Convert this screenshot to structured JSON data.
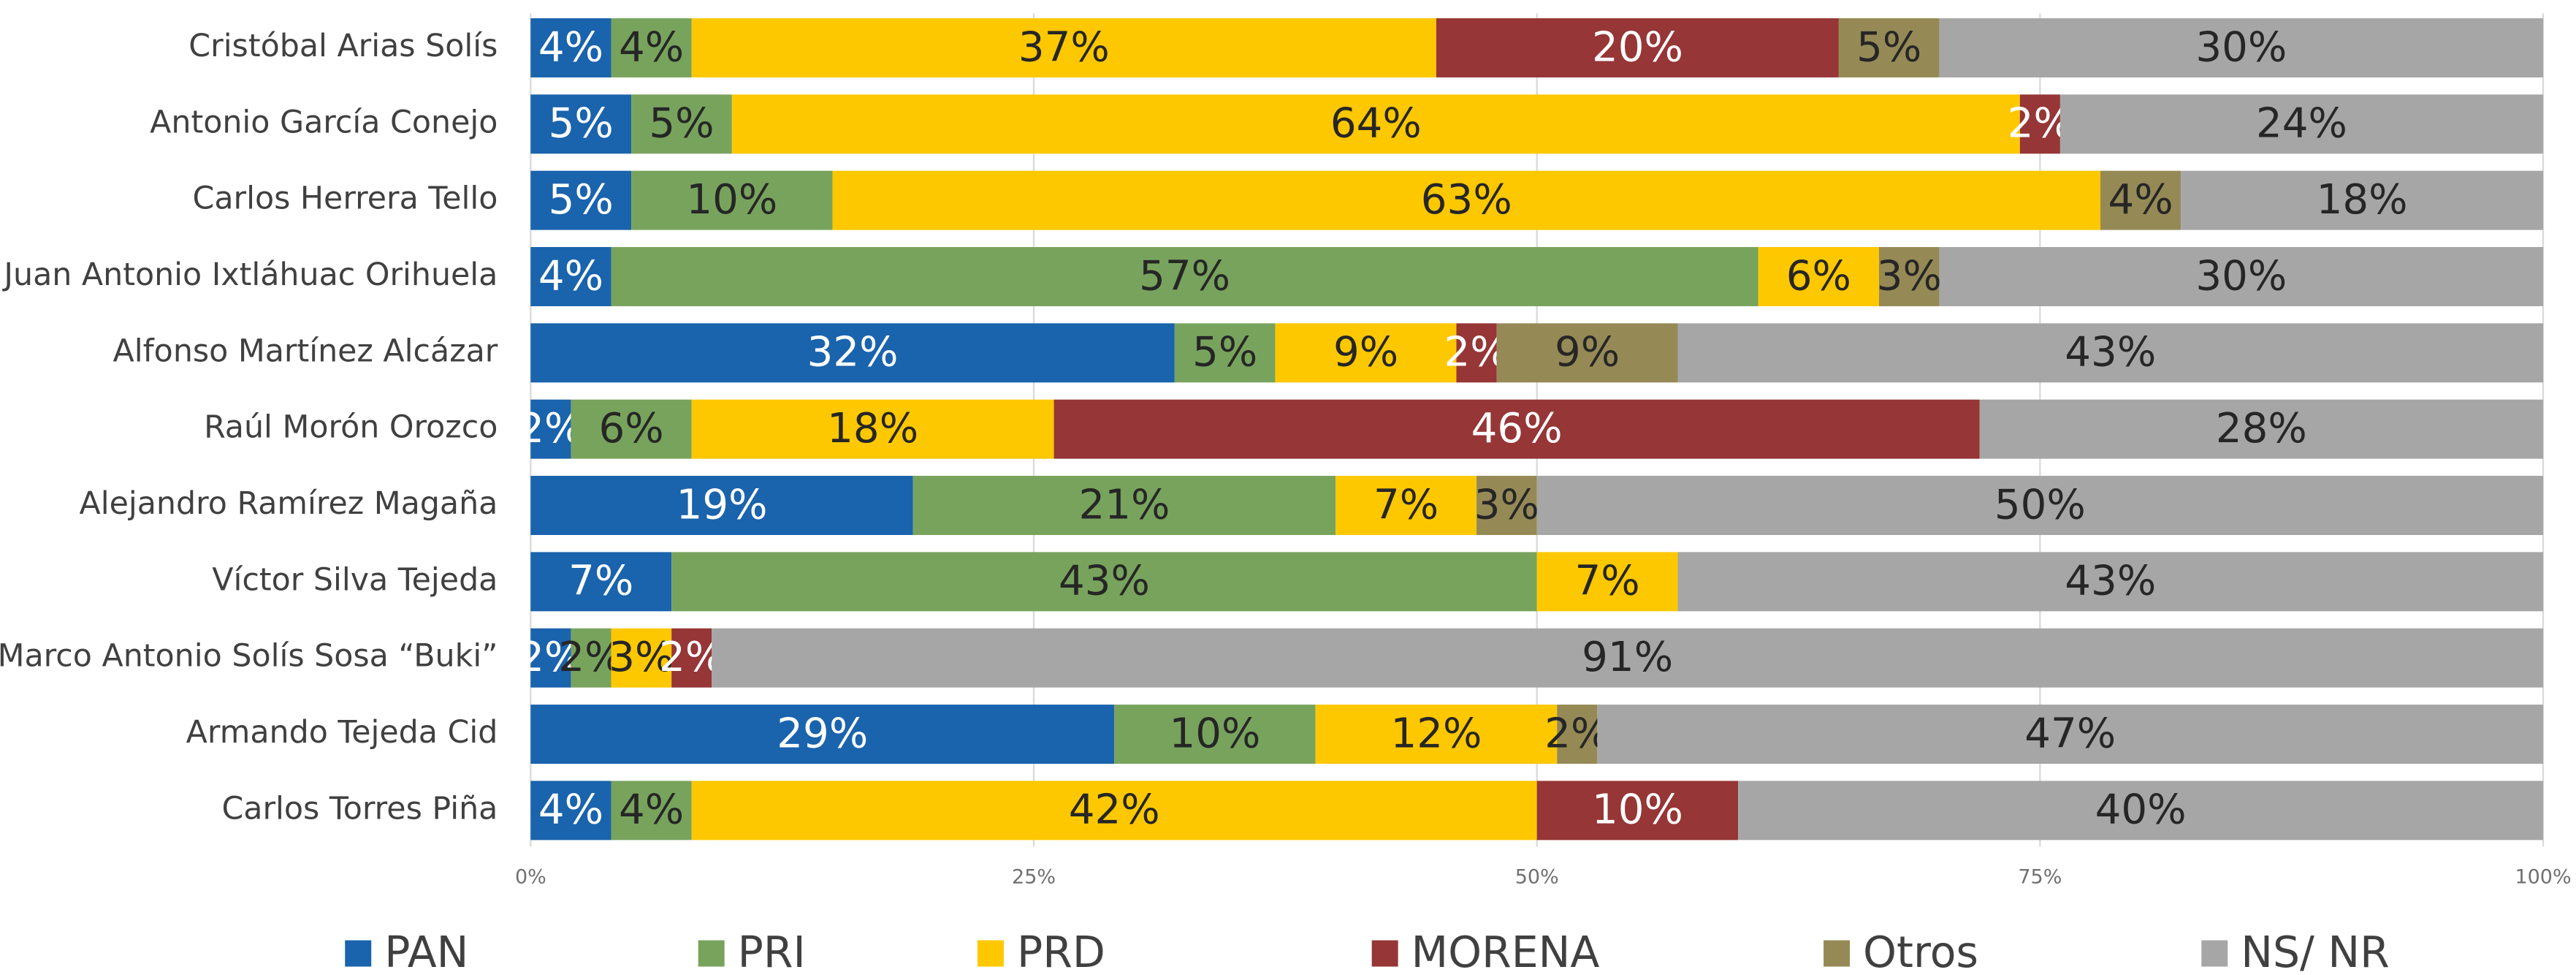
{
  "chart_data": {
    "type": "stacked_bar_horizontal",
    "categories": [
      "Cristóbal Arias Solís",
      "Antonio García Conejo",
      "Carlos Herrera Tello",
      "Juan Antonio Ixtláhuac Orihuela",
      "Alfonso Martínez Alcázar",
      "Raúl Morón Orozco",
      "Alejandro Ramírez Magaña",
      "Víctor Silva Tejeda",
      "Marco Antonio Solís Sosa “Buki”",
      "Armando Tejeda Cid",
      "Carlos Torres Piña"
    ],
    "series": [
      {
        "name": "PAN",
        "color": "#1a63ad",
        "label_color": "#ffffff",
        "values": [
          4,
          5,
          5,
          4,
          32,
          2,
          19,
          7,
          2,
          29,
          4
        ],
        "value_labels": [
          "4%",
          "5%",
          "5%",
          "4%",
          "32%",
          "2%",
          "19%",
          "7%",
          "2%",
          "29%",
          "4%"
        ]
      },
      {
        "name": "PRI",
        "color": "#78a35d",
        "label_color": "#262626",
        "values": [
          4,
          5,
          10,
          57,
          5,
          6,
          21,
          43,
          2,
          10,
          4
        ],
        "value_labels": [
          "4%",
          "5%",
          "10%",
          "57%",
          "5%",
          "6%",
          "21%",
          "43%",
          "2%",
          "10%",
          "4%"
        ]
      },
      {
        "name": "PRD",
        "color": "#fec800",
        "label_color": "#262626",
        "values": [
          37,
          64,
          63,
          6,
          9,
          18,
          7,
          7,
          3,
          12,
          42
        ],
        "value_labels": [
          "37%",
          "64%",
          "63%",
          "6%",
          "9%",
          "18%",
          "7%",
          "7%",
          "3%",
          "12%",
          "42%"
        ]
      },
      {
        "name": "MORENA",
        "color": "#963636",
        "label_color": "#ffffff",
        "values": [
          20,
          2,
          null,
          null,
          2,
          46,
          null,
          null,
          2,
          null,
          10
        ],
        "value_labels": [
          "20%",
          "2%",
          null,
          null,
          "2%",
          "46%",
          null,
          null,
          "2%",
          null,
          "10%"
        ]
      },
      {
        "name": "Otros",
        "color": "#958a56",
        "label_color": "#262626",
        "values": [
          5,
          null,
          4,
          3,
          9,
          null,
          3,
          null,
          null,
          2,
          null
        ],
        "value_labels": [
          "5%",
          null,
          "4%",
          "3%",
          "9%",
          null,
          "3%",
          null,
          null,
          "2%",
          null
        ]
      },
      {
        "name": "NS/ NR",
        "color": "#a6a6a6",
        "label_color": "#262626",
        "values": [
          30,
          24,
          18,
          30,
          43,
          28,
          50,
          43,
          91,
          47,
          40
        ],
        "value_labels": [
          "30%",
          "24%",
          "18%",
          "30%",
          "43%",
          "28%",
          "50%",
          "43%",
          "91%",
          "47%",
          "40%"
        ]
      }
    ],
    "xlim": [
      0,
      100
    ],
    "xticks": [
      {
        "value": 0,
        "label": "0%"
      },
      {
        "value": 25,
        "label": "25%"
      },
      {
        "value": 50,
        "label": "50%"
      },
      {
        "value": 75,
        "label": "75%"
      },
      {
        "value": 100,
        "label": "100%"
      }
    ],
    "grid": true,
    "legend": "bottom"
  }
}
